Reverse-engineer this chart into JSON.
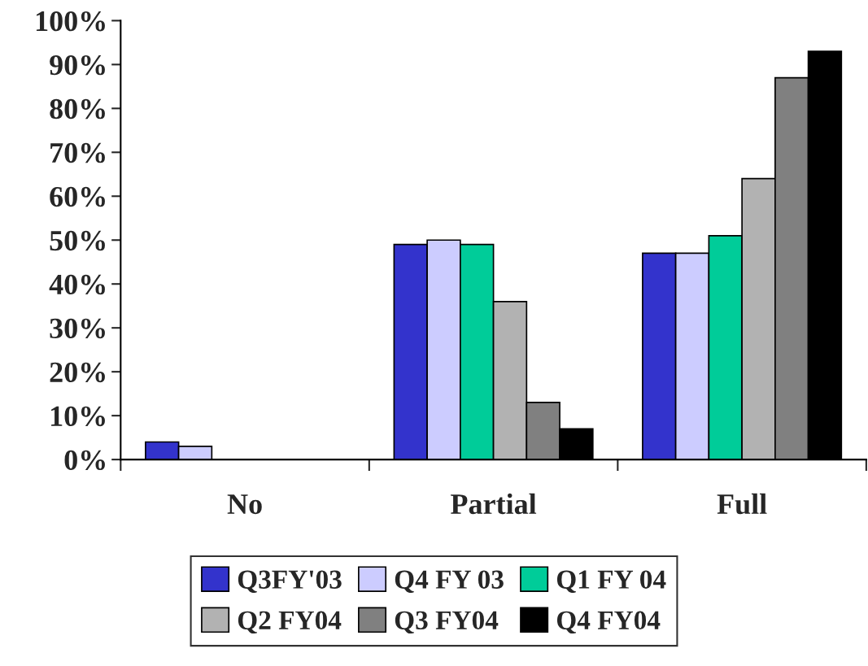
{
  "chart_data": {
    "type": "bar",
    "categories": [
      "No",
      "Partial",
      "Full"
    ],
    "series": [
      {
        "name": "Q3FY'03",
        "color": "#3333cc",
        "values": [
          4,
          49,
          47
        ]
      },
      {
        "name": "Q4 FY 03",
        "color": "#ccccff",
        "values": [
          3,
          50,
          47
        ]
      },
      {
        "name": "Q1 FY 04",
        "color": "#00cc99",
        "values": [
          null,
          49,
          51
        ]
      },
      {
        "name": "Q2 FY04",
        "color": "#b2b2b2",
        "values": [
          null,
          36,
          64
        ]
      },
      {
        "name": "Q3 FY04",
        "color": "#808080",
        "values": [
          null,
          13,
          87
        ]
      },
      {
        "name": "Q4 FY04",
        "color": "#000000",
        "values": [
          null,
          7,
          93
        ]
      }
    ],
    "ylim": [
      0,
      100
    ],
    "yticks": [
      {
        "value": 0,
        "label": "0%"
      },
      {
        "value": 10,
        "label": "10%"
      },
      {
        "value": 20,
        "label": "20%"
      },
      {
        "value": 30,
        "label": "30%"
      },
      {
        "value": 40,
        "label": "40%"
      },
      {
        "value": 50,
        "label": "50%"
      },
      {
        "value": 60,
        "label": "60%"
      },
      {
        "value": 70,
        "label": "70%"
      },
      {
        "value": 80,
        "label": "80%"
      },
      {
        "value": 90,
        "label": "90%"
      },
      {
        "value": 100,
        "label": "100%"
      }
    ],
    "grid": false,
    "legend": "bottom"
  }
}
